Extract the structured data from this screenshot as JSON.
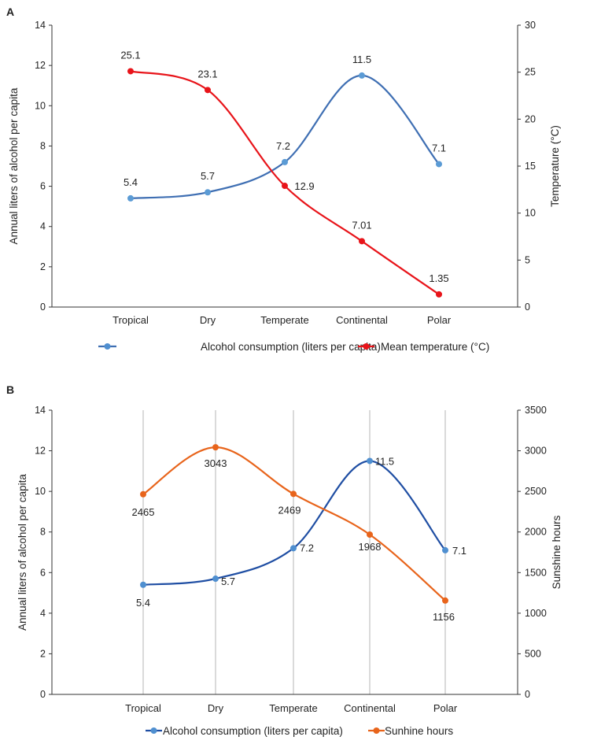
{
  "chart_data": [
    {
      "panel_label": "A",
      "type": "line",
      "categories": [
        "Tropical",
        "Dry",
        "Temperate",
        "Continental",
        "Polar"
      ],
      "series": [
        {
          "name": "Alcohol consumption (liters per capita)",
          "axis": "left",
          "color": "#3f6fb3",
          "values": [
            5.4,
            5.7,
            7.2,
            11.5,
            7.1
          ],
          "labels": [
            "5.4",
            "5.7",
            "7.2",
            "11.5",
            "7.1"
          ]
        },
        {
          "name": "Mean temperature (°C)",
          "axis": "right",
          "color": "#e8141a",
          "values": [
            25.1,
            23.1,
            12.9,
            7.01,
            1.35
          ],
          "labels": [
            "25.1",
            "23.1",
            "12.9",
            "7.01",
            "1.35"
          ]
        }
      ],
      "ylabel": "Annual liters of alcohol per capita",
      "y2label": "Temperature (°C)",
      "ylim": [
        0,
        14
      ],
      "yticks": [
        0,
        2,
        4,
        6,
        8,
        10,
        12,
        14
      ],
      "y2lim": [
        0,
        30
      ],
      "y2ticks": [
        0,
        5,
        10,
        15,
        20,
        25,
        30
      ],
      "vertical_grid": false,
      "legend": "bottom"
    },
    {
      "panel_label": "B",
      "type": "line",
      "categories": [
        "Tropical",
        "Dry",
        "Temperate",
        "Continental",
        "Polar"
      ],
      "series": [
        {
          "name": "Alcohol consumption (liters per capita)",
          "axis": "left",
          "color": "#1f4ea3",
          "values": [
            5.4,
            5.7,
            7.2,
            11.5,
            7.1
          ],
          "labels": [
            "5.4",
            "5.7",
            "7.2",
            "11.5",
            "7.1"
          ]
        },
        {
          "name": "Sunhine hours",
          "axis": "right",
          "color": "#e8641b",
          "values": [
            2465,
            3043,
            2469,
            1968,
            1156
          ],
          "labels": [
            "2465",
            "3043",
            "2469",
            "1968",
            "1156"
          ]
        }
      ],
      "ylabel": "Annual liters of alcohol per capita",
      "y2label": "Sunshine hours",
      "ylim": [
        0,
        14
      ],
      "yticks": [
        0,
        2,
        4,
        6,
        8,
        10,
        12,
        14
      ],
      "y2lim": [
        0,
        3500
      ],
      "y2ticks": [
        0,
        500,
        1000,
        1500,
        2000,
        2500,
        3000,
        3500
      ],
      "vertical_grid": true,
      "legend": "bottom"
    }
  ]
}
